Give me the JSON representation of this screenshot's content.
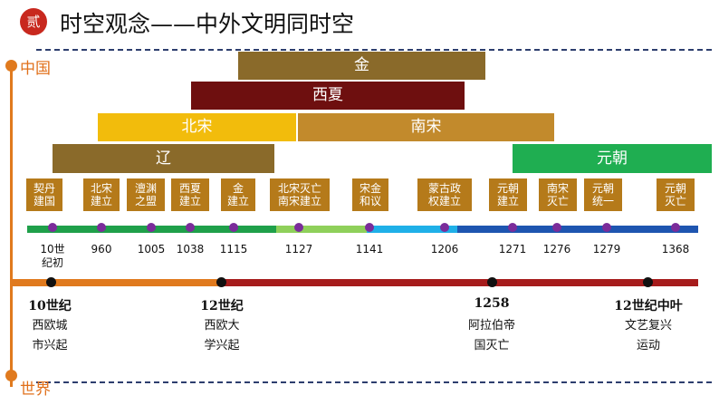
{
  "header": {
    "badge": "贰",
    "title": "时空观念——中外文明同时空"
  },
  "axis": {
    "china": "中国",
    "world": "世界"
  },
  "dynasties": {
    "jin": "金",
    "xixia": "西夏",
    "beisong": "北宋",
    "nansong": "南宋",
    "liao": "辽",
    "yuan": "元朝"
  },
  "events": [
    "契丹\n建国",
    "北宋\n建立",
    "澶渊\n之盟",
    "西夏\n建立",
    "金\n建立",
    "北宋灭亡\n南宋建立",
    "宋金\n和议",
    "蒙古政\n权建立",
    "元朝\n建立",
    "南宋\n灭亡",
    "元朝\n统一",
    "元朝\n灭亡"
  ],
  "years": [
    "10世\n纪初",
    "960",
    "1005",
    "1038",
    "1115",
    "1127",
    "1141",
    "1206",
    "1271",
    "1276",
    "1279",
    "1368"
  ],
  "world_events": [
    {
      "time": "10世纪",
      "desc": "西欧城\n市兴起"
    },
    {
      "time": "12世纪",
      "desc": "西欧大\n学兴起"
    },
    {
      "time": "1258",
      "desc": "阿拉伯帝\n国灭亡"
    },
    {
      "time": "12世纪中叶",
      "desc": "文艺复兴\n运动"
    }
  ],
  "colors": {
    "jin": "#8a6a2a",
    "xixia": "#6e0f0f",
    "beisong": "#f2bc0c",
    "nansong": "#c28a2c",
    "liao": "#8a6a2a",
    "yuan": "#1fae51",
    "event_box": "#b57a1a",
    "timeline_dot": "#7b2c9a",
    "world_orange": "#e07a1e",
    "world_red": "#a61c1c"
  }
}
